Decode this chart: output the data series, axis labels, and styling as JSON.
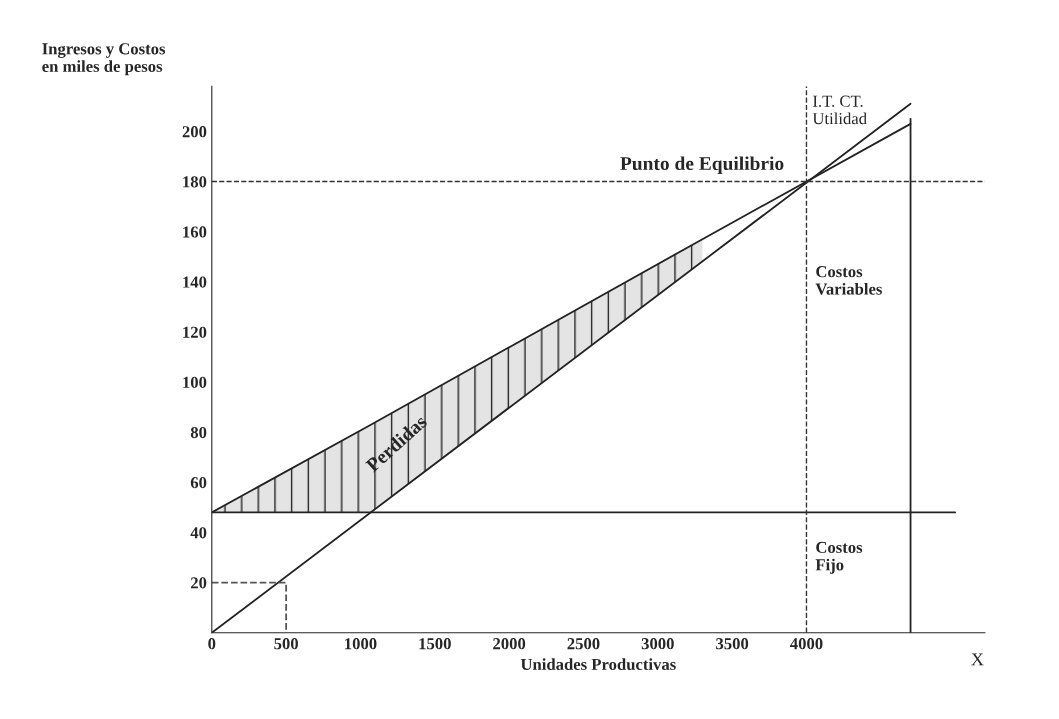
{
  "chart_data": {
    "type": "line",
    "xlabel": "Unidades Productivas",
    "ylabel": "Ingresos y Costos\nen miles de pesos",
    "xlim": [
      0,
      5200
    ],
    "ylim": [
      0,
      218
    ],
    "xticks": [
      0,
      500,
      1000,
      1500,
      2000,
      2500,
      3000,
      3500,
      4000
    ],
    "yticks": [
      20,
      40,
      60,
      80,
      100,
      120,
      140,
      160,
      180,
      200
    ],
    "grid": false,
    "legend": false,
    "series": [
      {
        "type": "line",
        "color": "#222222",
        "x": [
          0,
          4700
        ],
        "values": [
          0,
          211
        ]
      },
      {
        "type": "line",
        "color": "#222222",
        "x": [
          0,
          1070,
          3300,
          4700
        ],
        "values": [
          48,
          83,
          157,
          203
        ],
        "lower": [
          48,
          48,
          148,
          null
        ],
        "upper": [
          48,
          83,
          157,
          null
        ]
      },
      {
        "color": "#222222",
        "x": [
          0,
          5000
        ],
        "values": [
          48,
          48
        ]
      },
      {
        "color": "#222222",
        "x": [
          4700,
          4700
        ],
        "values": [
          0,
          205
        ]
      },
      {
        "color": "#555555",
        "line_style": "dashed",
        "x": [
          0,
          500,
          500
        ],
        "values": [
          20,
          20,
          0
        ]
      }
    ],
    "ref_lines": [
      {
        "axis": "y",
        "value": 180,
        "color": "#333333",
        "line_style": "dashed"
      },
      {
        "axis": "x",
        "value": 4000,
        "color": "#333333",
        "line_style": "dashed"
      }
    ],
    "annotations": [
      {
        "text": "Punto de Equilibrio",
        "x": 4000,
        "y": 180
      },
      {
        "text": "I.T. CT.\nUtilidad",
        "x": 4000,
        "y": 208
      },
      "Costos\nVariables",
      "Costos\nFijo",
      "Perdidas",
      "X"
    ]
  }
}
